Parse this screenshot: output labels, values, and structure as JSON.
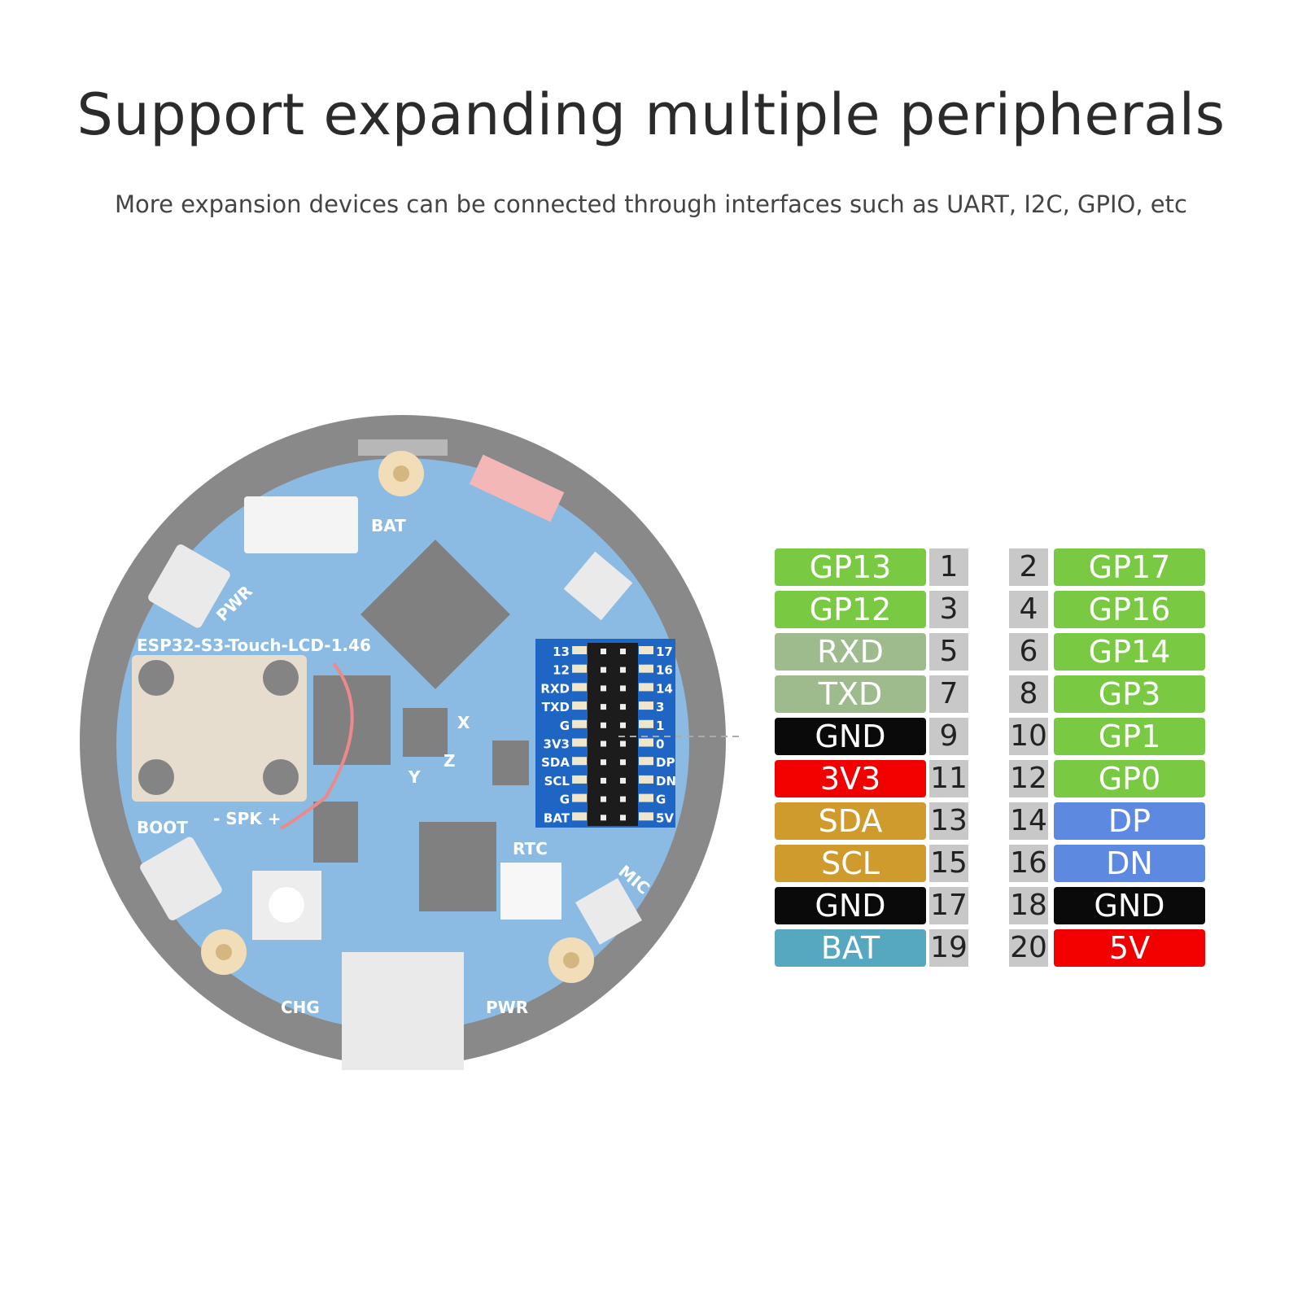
{
  "header": {
    "title": "Support expanding multiple peripherals",
    "subtitle": "More expansion devices can be connected through interfaces such as UART, I2C, GPIO, etc"
  },
  "board": {
    "name": "ESP32-S3-Touch-LCD-1.46",
    "silkscreen": {
      "bat": "BAT",
      "pwr_top": "PWR",
      "boot": "BOOT",
      "spk": "- SPK +",
      "rtc": "RTC",
      "mic": "MIC",
      "chg": "CHG",
      "pwr_bottom": "PWR",
      "axis_x": "X",
      "axis_y": "Y",
      "axis_z": "Z"
    },
    "header_left_labels": [
      "13",
      "12",
      "RXD",
      "TXD",
      "G",
      "3V3",
      "SDA",
      "SCL",
      "G",
      "BAT"
    ],
    "header_right_labels": [
      "17",
      "16",
      "14",
      "3",
      "1",
      "0",
      "DP",
      "DN",
      "G",
      "5V"
    ],
    "pcb_color": "#3f8fd0",
    "header_highlight_color": "#1f66c4"
  },
  "pinout": {
    "left": [
      {
        "label": "GP13",
        "num": "1",
        "color": "#79c943"
      },
      {
        "label": "GP12",
        "num": "3",
        "color": "#79c943"
      },
      {
        "label": "RXD",
        "num": "5",
        "color": "#9dbb8c"
      },
      {
        "label": "TXD",
        "num": "7",
        "color": "#9dbb8c"
      },
      {
        "label": "GND",
        "num": "9",
        "color": "#0a0a0a"
      },
      {
        "label": "3V3",
        "num": "11",
        "color": "#f20000"
      },
      {
        "label": "SDA",
        "num": "13",
        "color": "#cf9b2c"
      },
      {
        "label": "SCL",
        "num": "15",
        "color": "#cf9b2c"
      },
      {
        "label": "GND",
        "num": "17",
        "color": "#0a0a0a"
      },
      {
        "label": "BAT",
        "num": "19",
        "color": "#55a8c0"
      }
    ],
    "right": [
      {
        "label": "GP17",
        "num": "2",
        "color": "#79c943"
      },
      {
        "label": "GP16",
        "num": "4",
        "color": "#79c943"
      },
      {
        "label": "GP14",
        "num": "6",
        "color": "#79c943"
      },
      {
        "label": "GP3",
        "num": "8",
        "color": "#79c943"
      },
      {
        "label": "GP1",
        "num": "10",
        "color": "#79c943"
      },
      {
        "label": "GP0",
        "num": "12",
        "color": "#79c943"
      },
      {
        "label": "DP",
        "num": "14",
        "color": "#5d8ae0"
      },
      {
        "label": "DN",
        "num": "16",
        "color": "#5d8ae0"
      },
      {
        "label": "GND",
        "num": "18",
        "color": "#0a0a0a"
      },
      {
        "label": "5V",
        "num": "20",
        "color": "#f20000"
      }
    ]
  }
}
